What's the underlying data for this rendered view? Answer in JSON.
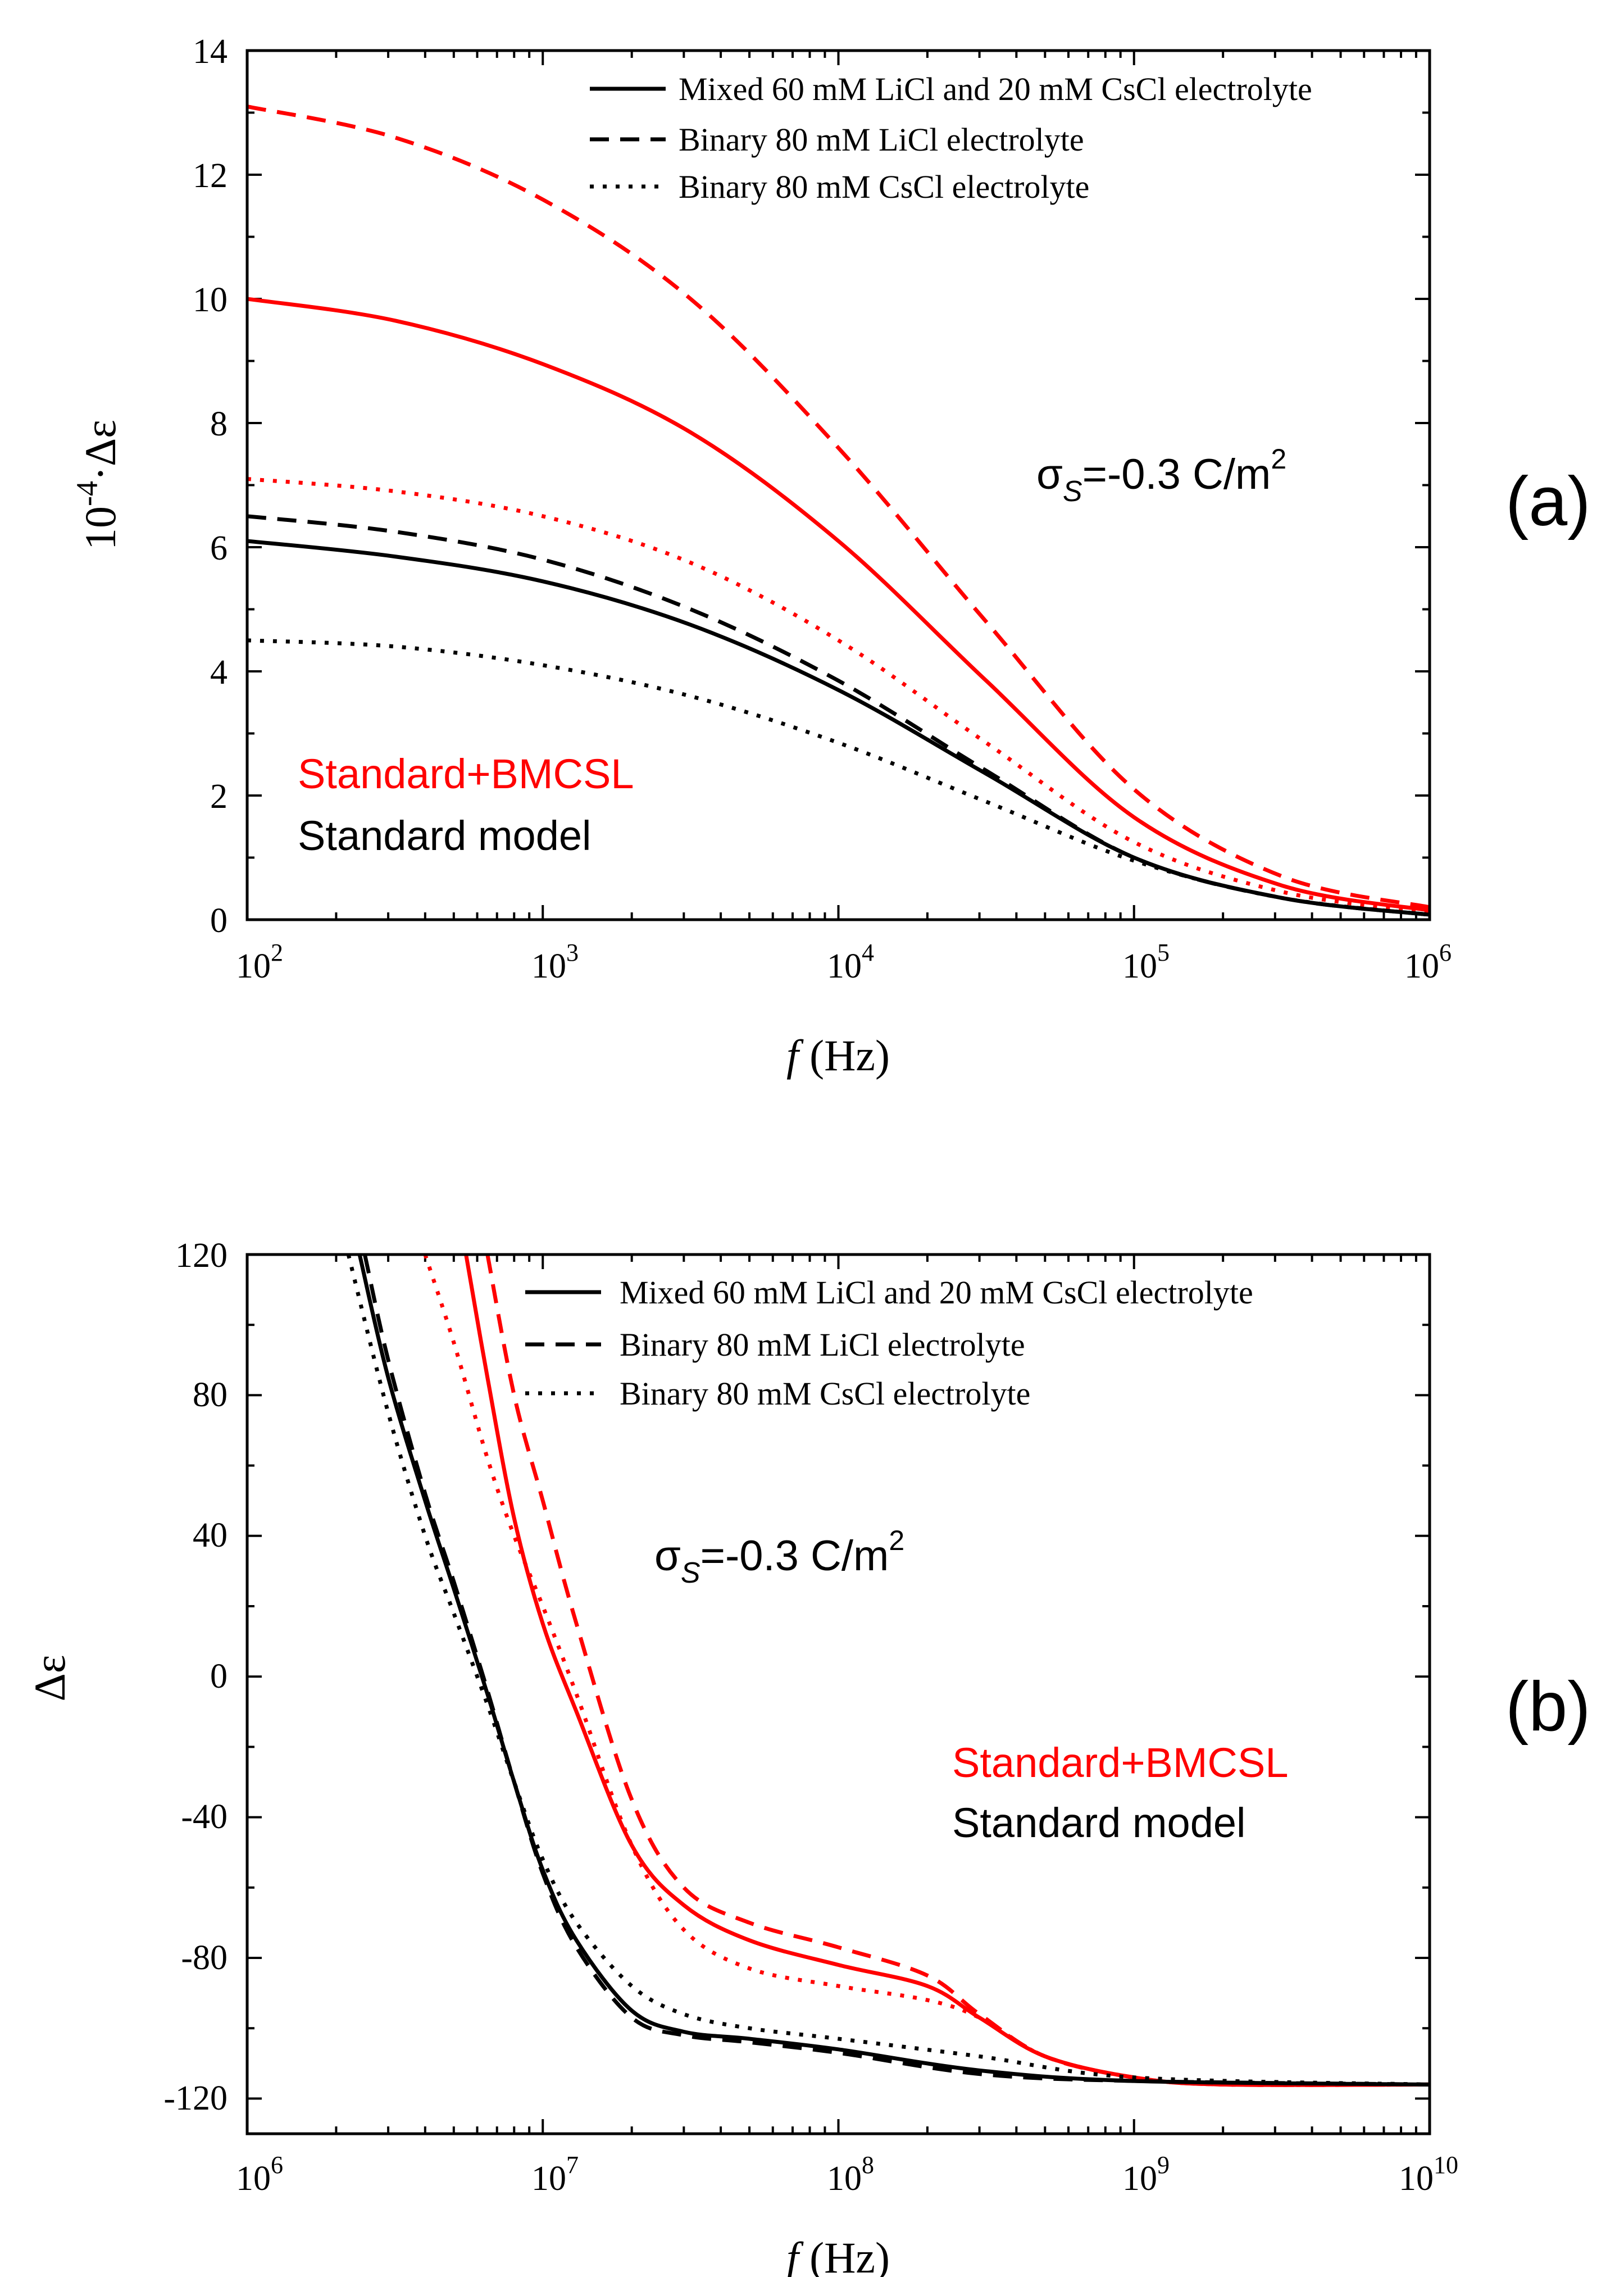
{
  "colors": {
    "red": "#ff0000",
    "black": "#000000"
  },
  "chart_data": [
    {
      "type": "line",
      "panel_label": "(a)",
      "xscale": "log",
      "xlim": [
        100,
        1000000
      ],
      "ylim": [
        0,
        14
      ],
      "xlabel_italic": "f",
      "xlabel_rest": " (Hz)",
      "ylabel_prefix": "10",
      "ylabel_exp": "-4",
      "ylabel_rest": "·Δε",
      "xtick_exps": [
        "2",
        "3",
        "4",
        "5",
        "6"
      ],
      "yticks": [
        "0",
        "2",
        "4",
        "6",
        "8",
        "10",
        "12",
        "14"
      ],
      "annotation": {
        "sigma": "σ",
        "sub": "S",
        "text": "=-0.3 C/m",
        "sup": "2"
      },
      "model_labels": [
        {
          "text": "Standard+BMCSL",
          "color": "#ff0000"
        },
        {
          "text": "Standard model",
          "color": "#000000"
        }
      ],
      "legend": [
        {
          "label": "Mixed 60 mM LiCl and 20 mM CsCl electrolyte",
          "style": "solid"
        },
        {
          "label": "Binary 80 mM LiCl electrolyte",
          "style": "dashed"
        },
        {
          "label": "Binary 80 mM CsCl electrolyte",
          "style": "dotted"
        }
      ],
      "series": [
        {
          "name": "Standard+BMCSL mixed",
          "color": "#ff0000",
          "style": "solid",
          "x": [
            100,
            316,
            1000,
            3162,
            10000,
            31623,
            100000,
            316228,
            1000000
          ],
          "y": [
            10.0,
            9.65,
            8.95,
            7.85,
            6.1,
            3.85,
            1.65,
            0.55,
            0.15
          ]
        },
        {
          "name": "Standard+BMCSL LiCl",
          "color": "#ff0000",
          "style": "dashed",
          "x": [
            100,
            316,
            1000,
            3162,
            10000,
            31623,
            100000,
            316228,
            1000000
          ],
          "y": [
            13.1,
            12.6,
            11.6,
            10.0,
            7.6,
            4.8,
            2.1,
            0.7,
            0.2
          ]
        },
        {
          "name": "Standard+BMCSL CsCl",
          "color": "#ff0000",
          "style": "dotted",
          "x": [
            100,
            316,
            1000,
            3162,
            10000,
            31623,
            100000,
            316228,
            1000000
          ],
          "y": [
            7.1,
            6.9,
            6.5,
            5.75,
            4.5,
            2.85,
            1.25,
            0.45,
            0.12
          ]
        },
        {
          "name": "Standard model mixed",
          "color": "#000000",
          "style": "solid",
          "x": [
            100,
            316,
            1000,
            3162,
            10000,
            31623,
            100000,
            316228,
            1000000
          ],
          "y": [
            6.1,
            5.85,
            5.45,
            4.75,
            3.7,
            2.35,
            1.0,
            0.35,
            0.08
          ]
        },
        {
          "name": "Standard model LiCl",
          "color": "#000000",
          "style": "dashed",
          "x": [
            100,
            316,
            1000,
            3162,
            10000,
            31623,
            100000,
            316228,
            1000000
          ],
          "y": [
            6.5,
            6.25,
            5.8,
            5.0,
            3.85,
            2.4,
            1.0,
            0.35,
            0.08
          ]
        },
        {
          "name": "Standard model CsCl",
          "color": "#000000",
          "style": "dotted",
          "x": [
            100,
            316,
            1000,
            3162,
            10000,
            31623,
            100000,
            316228,
            1000000
          ],
          "y": [
            4.5,
            4.4,
            4.1,
            3.6,
            2.85,
            1.9,
            0.95,
            0.35,
            0.08
          ]
        }
      ]
    },
    {
      "type": "line",
      "panel_label": "(b)",
      "xscale": "log",
      "xlim": [
        1000000,
        10000000000
      ],
      "ylim": [
        -130,
        120
      ],
      "xlabel_italic": "f",
      "xlabel_rest": " (Hz)",
      "ylabel": "Δε",
      "xtick_exps": [
        "6",
        "7",
        "8",
        "9",
        "10"
      ],
      "yticks": [
        "-120",
        "-80",
        "-40",
        "0",
        "40",
        "80",
        "120"
      ],
      "annotation": {
        "sigma": "σ",
        "sub": "S",
        "text": "=-0.3 C/m",
        "sup": "2"
      },
      "model_labels": [
        {
          "text": "Standard+BMCSL",
          "color": "#ff0000"
        },
        {
          "text": "Standard model",
          "color": "#000000"
        }
      ],
      "legend": [
        {
          "label": "Mixed 60 mM LiCl and 20 mM CsCl electrolyte",
          "style": "solid"
        },
        {
          "label": "Binary 80 mM LiCl electrolyte",
          "style": "dashed"
        },
        {
          "label": "Binary 80 mM CsCl electrolyte",
          "style": "dotted"
        }
      ],
      "series": [
        {
          "name": "Standard+BMCSL mixed",
          "color": "#ff0000",
          "style": "solid",
          "x": [
            5500000,
            6500000,
            8000000,
            10000000,
            13000000,
            20000000,
            30000000,
            50000000,
            100000000,
            200000000,
            300000000,
            500000000,
            1000000000,
            2000000000,
            10000000000
          ],
          "y": [
            120,
            85,
            45,
            15,
            -10,
            -48,
            -65,
            -75,
            -82,
            -88,
            -97,
            -108,
            -114,
            -116,
            -116
          ]
        },
        {
          "name": "Standard+BMCSL LiCl",
          "color": "#ff0000",
          "style": "dashed",
          "x": [
            6500000,
            8000000,
            10000000,
            13000000,
            20000000,
            30000000,
            50000000,
            100000000,
            200000000,
            300000000,
            500000000,
            1000000000,
            2000000000,
            10000000000
          ],
          "y": [
            120,
            80,
            50,
            15,
            -35,
            -60,
            -70,
            -77,
            -85,
            -96,
            -108,
            -114,
            -116,
            -116
          ]
        },
        {
          "name": "Standard+BMCSL CsCl",
          "color": "#ff0000",
          "style": "dotted",
          "x": [
            4000000,
            5000000,
            6500000,
            8000000,
            10000000,
            13000000,
            20000000,
            30000000,
            50000000,
            100000000,
            200000000,
            300000000,
            500000000,
            1000000000,
            2000000000,
            10000000000
          ],
          "y": [
            120,
            95,
            62,
            40,
            20,
            -5,
            -48,
            -72,
            -83,
            -88,
            -92,
            -97,
            -108,
            -114,
            -116,
            -116
          ]
        },
        {
          "name": "Standard model mixed",
          "color": "#000000",
          "style": "solid",
          "x": [
            2400000,
            3000000,
            4000000,
            5000000,
            6500000,
            8000000,
            10000000,
            13000000,
            20000000,
            30000000,
            50000000,
            100000000,
            300000000,
            1000000000,
            10000000000
          ],
          "y": [
            120,
            85,
            50,
            25,
            -5,
            -30,
            -55,
            -75,
            -95,
            -101,
            -103,
            -106,
            -112,
            -115,
            -116
          ]
        },
        {
          "name": "Standard model LiCl",
          "color": "#000000",
          "style": "dashed",
          "x": [
            2500000,
            3000000,
            4000000,
            5000000,
            6500000,
            8000000,
            10000000,
            13000000,
            20000000,
            30000000,
            50000000,
            100000000,
            300000000,
            1000000000,
            10000000000
          ],
          "y": [
            120,
            90,
            52,
            27,
            -4,
            -30,
            -56,
            -77,
            -97,
            -102,
            -104,
            -107,
            -113,
            -115,
            -116
          ]
        },
        {
          "name": "Standard model CsCl",
          "color": "#000000",
          "style": "dotted",
          "x": [
            2200000,
            3000000,
            4000000,
            5000000,
            6500000,
            8000000,
            10000000,
            13000000,
            20000000,
            30000000,
            50000000,
            100000000,
            300000000,
            1000000000,
            10000000000
          ],
          "y": [
            120,
            75,
            40,
            18,
            -8,
            -30,
            -52,
            -70,
            -88,
            -96,
            -100,
            -103,
            -108,
            -114,
            -116
          ]
        }
      ]
    }
  ]
}
